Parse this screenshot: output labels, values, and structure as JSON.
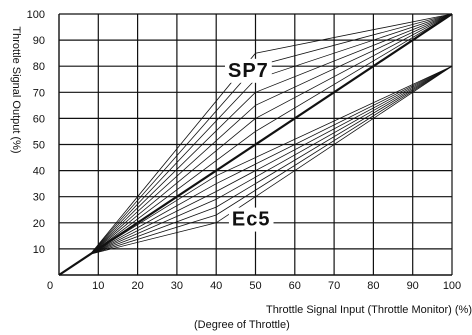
{
  "chart_data": {
    "type": "line",
    "title": "",
    "xlabel": "Throttle Signal Input  (Throttle Monitor) (%)",
    "xlabel_sub": "(Degree of Throttle)",
    "ylabel": "Throttle Signal Output (%)",
    "xlim": [
      0,
      100
    ],
    "ylim": [
      0,
      100
    ],
    "x_ticks": [
      "10",
      "20",
      "30",
      "40",
      "50",
      "60",
      "70",
      "80",
      "90",
      "100"
    ],
    "y_ticks": [
      "10",
      "20",
      "30",
      "40",
      "50",
      "60",
      "70",
      "80",
      "90",
      "100"
    ],
    "origin_label": "0",
    "grid": true,
    "annotations": [
      {
        "text": "SP7",
        "x": 43,
        "y": 79
      },
      {
        "text": "Ec5",
        "x": 44,
        "y": 22
      }
    ],
    "reference_line": {
      "points": [
        [
          0,
          0
        ],
        [
          100,
          100
        ]
      ]
    },
    "sp_curves": [
      {
        "points": [
          [
            0,
            0
          ],
          [
            8,
            8
          ],
          [
            50,
            85
          ],
          [
            100,
            100
          ]
        ]
      },
      {
        "points": [
          [
            0,
            0
          ],
          [
            8,
            8
          ],
          [
            50,
            80
          ],
          [
            100,
            100
          ]
        ]
      },
      {
        "points": [
          [
            0,
            0
          ],
          [
            8,
            8
          ],
          [
            50,
            75
          ],
          [
            100,
            100
          ]
        ]
      },
      {
        "points": [
          [
            0,
            0
          ],
          [
            8,
            8
          ],
          [
            50,
            70
          ],
          [
            100,
            100
          ]
        ]
      },
      {
        "points": [
          [
            0,
            0
          ],
          [
            8,
            8
          ],
          [
            50,
            65
          ],
          [
            100,
            100
          ]
        ]
      },
      {
        "points": [
          [
            0,
            0
          ],
          [
            8,
            8
          ],
          [
            50,
            60
          ],
          [
            100,
            100
          ]
        ]
      },
      {
        "points": [
          [
            0,
            0
          ],
          [
            8,
            8
          ],
          [
            50,
            55
          ],
          [
            100,
            100
          ]
        ]
      }
    ],
    "ec_curves": [
      {
        "points": [
          [
            0,
            0
          ],
          [
            8,
            8
          ],
          [
            40,
            20
          ],
          [
            100,
            80
          ]
        ]
      },
      {
        "points": [
          [
            0,
            0
          ],
          [
            8,
            8
          ],
          [
            40,
            23
          ],
          [
            100,
            80
          ]
        ]
      },
      {
        "points": [
          [
            0,
            0
          ],
          [
            8,
            8
          ],
          [
            40,
            26
          ],
          [
            100,
            80
          ]
        ]
      },
      {
        "points": [
          [
            0,
            0
          ],
          [
            8,
            8
          ],
          [
            40,
            29
          ],
          [
            100,
            80
          ]
        ]
      },
      {
        "points": [
          [
            0,
            0
          ],
          [
            8,
            8
          ],
          [
            40,
            32
          ],
          [
            100,
            80
          ]
        ]
      },
      {
        "points": [
          [
            0,
            0
          ],
          [
            8,
            8
          ],
          [
            40,
            35
          ],
          [
            100,
            80
          ]
        ]
      },
      {
        "points": [
          [
            0,
            0
          ],
          [
            8,
            8
          ],
          [
            40,
            38
          ],
          [
            100,
            80
          ]
        ]
      }
    ]
  }
}
